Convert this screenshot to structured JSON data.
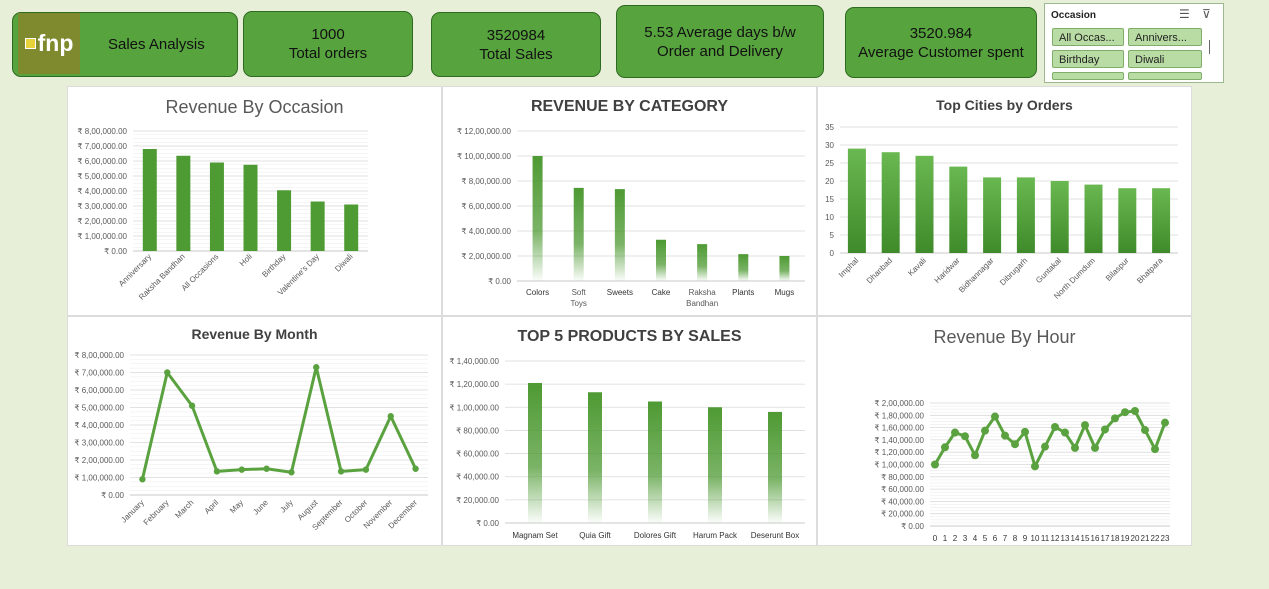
{
  "header": {
    "logo_text": "fnp",
    "title": "Sales Analysis",
    "kpis": [
      {
        "value": "1000",
        "label": "Total orders"
      },
      {
        "value": "3520984",
        "label": "Total Sales"
      },
      {
        "value": "5.53 Average days b/w",
        "label": "Order and Delivery"
      },
      {
        "value": "3520.984",
        "label": "Average Customer spent"
      }
    ]
  },
  "slicer": {
    "title": "Occasion",
    "items": [
      "All Occas...",
      "Annivers...",
      "Birthday",
      "Diwali"
    ],
    "multi_select_icon": "multi-select-icon",
    "clear_filter_icon": "clear-filter-icon"
  },
  "colors": {
    "bar": "#4e9a33",
    "line": "#5aa23f",
    "kpi": "#57a33e",
    "background": "#e8efd8"
  },
  "chart_data": [
    {
      "id": "occasion",
      "type": "bar",
      "title": "Revenue By Occasion",
      "categories": [
        "Anniversary",
        "Raksha Bandhan",
        "All Occasions",
        "Holi",
        "Birthday",
        "Valentine's Day",
        "Diwali"
      ],
      "values": [
        680000,
        635000,
        590000,
        575000,
        405000,
        330000,
        310000
      ],
      "ylim": [
        0,
        800000
      ],
      "yticks": [
        "₹ 0.00",
        "₹ 1,00,000.00",
        "₹ 2,00,000.00",
        "₹ 3,00,000.00",
        "₹ 4,00,000.00",
        "₹ 5,00,000.00",
        "₹ 6,00,000.00",
        "₹ 7,00,000.00",
        "₹ 8,00,000.00"
      ],
      "grid": true
    },
    {
      "id": "category",
      "type": "bar",
      "title": "REVENUE  BY CATEGORY",
      "categories": [
        "Colors",
        "Soft Toys",
        "Sweets",
        "Cake",
        "Raksha Bandhan",
        "Plants",
        "Mugs"
      ],
      "values": [
        1000000,
        745000,
        735000,
        330000,
        295000,
        215000,
        200000
      ],
      "ylim": [
        0,
        1200000
      ],
      "yticks": [
        "₹ 0.00",
        "₹ 2,00,000.00",
        "₹ 4,00,000.00",
        "₹ 6,00,000.00",
        "₹ 8,00,000.00",
        "₹ 10,00,000.00",
        "₹ 12,00,000.00"
      ],
      "grid": true
    },
    {
      "id": "cities",
      "type": "bar",
      "title": "Top Cities by Orders",
      "categories": [
        "Imphal",
        "Dhanbad",
        "Kavali",
        "Haridwar",
        "Bidhannagar",
        "Dibrugarh",
        "Guntakal",
        "North Dumdum",
        "Bilaspur",
        "Bhatpara"
      ],
      "values": [
        29,
        28,
        27,
        24,
        21,
        21,
        20,
        19,
        18,
        18
      ],
      "ylim": [
        0,
        35
      ],
      "yticks": [
        "0",
        "5",
        "10",
        "15",
        "20",
        "25",
        "30",
        "35"
      ],
      "grid": true
    },
    {
      "id": "month",
      "type": "line",
      "title": "Revenue By Month",
      "categories": [
        "January",
        "February",
        "March",
        "April",
        "May",
        "June",
        "July",
        "August",
        "September",
        "October",
        "November",
        "December"
      ],
      "values": [
        90000,
        700000,
        510000,
        135000,
        145000,
        150000,
        130000,
        730000,
        135000,
        145000,
        450000,
        150000
      ],
      "ylim": [
        0,
        800000
      ],
      "yticks": [
        "₹ 0.00",
        "₹ 1,00,000.00",
        "₹ 2,00,000.00",
        "₹ 3,00,000.00",
        "₹ 4,00,000.00",
        "₹ 5,00,000.00",
        "₹ 6,00,000.00",
        "₹ 7,00,000.00",
        "₹ 8,00,000.00"
      ],
      "grid": true
    },
    {
      "id": "products",
      "type": "bar",
      "title": "TOP 5 PRODUCTS BY SALES",
      "categories": [
        "Magnam Set",
        "Quia Gift",
        "Dolores Gift",
        "Harum Pack",
        "Deserunt Box"
      ],
      "values": [
        121000,
        113000,
        105000,
        100000,
        96000
      ],
      "ylim": [
        0,
        140000
      ],
      "yticks": [
        "₹ 0.00",
        "₹ 20,000.00",
        "₹ 40,000.00",
        "₹ 60,000.00",
        "₹ 80,000.00",
        "₹ 1,00,000.00",
        "₹ 1,20,000.00",
        "₹ 1,40,000.00"
      ],
      "grid": true
    },
    {
      "id": "hour",
      "type": "line",
      "title": "Revenue By Hour",
      "categories": [
        "0",
        "1",
        "2",
        "3",
        "4",
        "5",
        "6",
        "7",
        "8",
        "9",
        "10",
        "11",
        "12",
        "13",
        "14",
        "15",
        "16",
        "17",
        "18",
        "19",
        "20",
        "21",
        "22",
        "23"
      ],
      "values": [
        100000,
        128000,
        152000,
        146000,
        115000,
        155000,
        178000,
        147000,
        133000,
        153000,
        97000,
        129000,
        161000,
        152000,
        127000,
        164000,
        127000,
        157000,
        175000,
        185000,
        187000,
        156000,
        125000,
        168000
      ],
      "ylim": [
        0,
        200000
      ],
      "yticks": [
        "₹ 0.00",
        "₹ 20,000.00",
        "₹ 40,000.00",
        "₹ 60,000.00",
        "₹ 80,000.00",
        "₹ 1,00,000.00",
        "₹ 1,20,000.00",
        "₹ 1,40,000.00",
        "₹ 1,60,000.00",
        "₹ 1,80,000.00",
        "₹ 2,00,000.00"
      ],
      "grid": true
    }
  ]
}
